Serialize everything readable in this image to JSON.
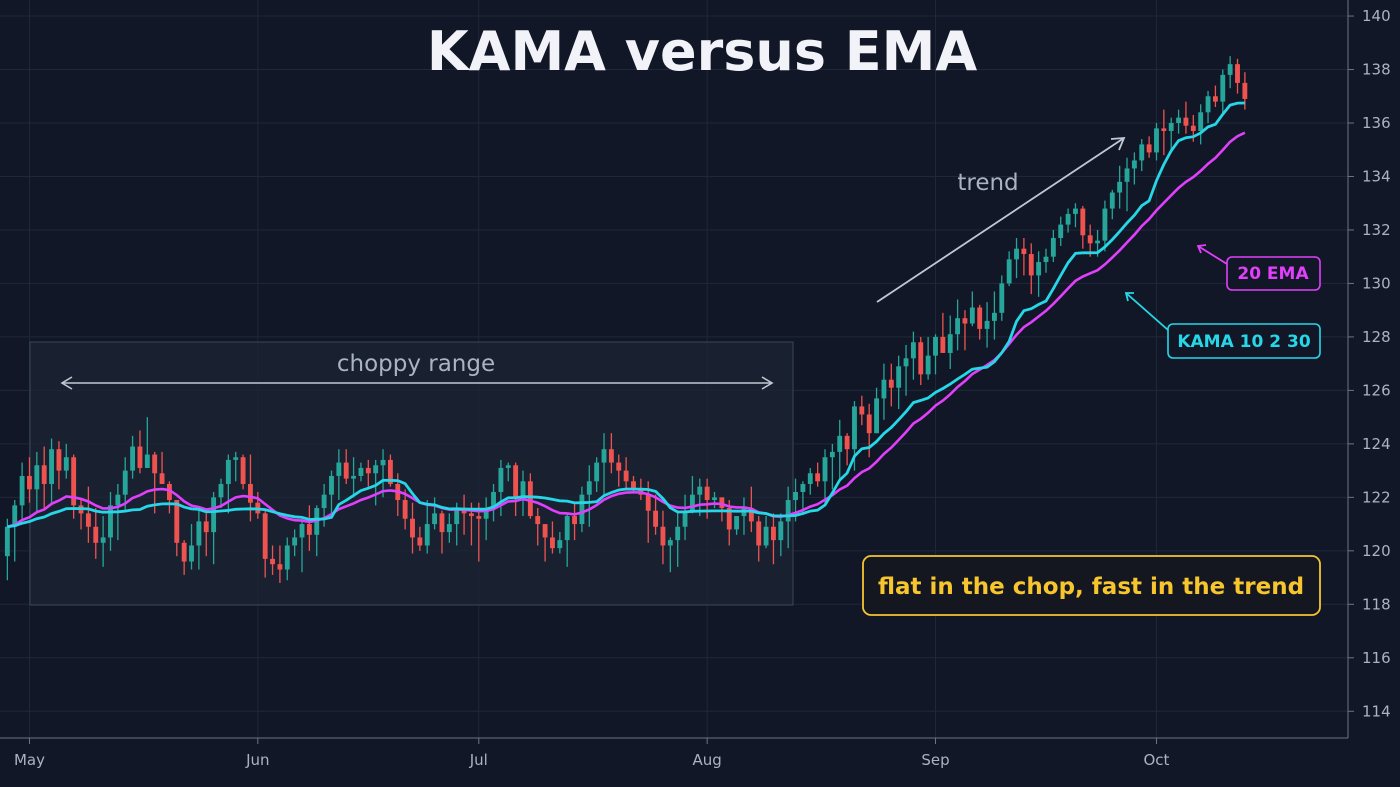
{
  "chart_data": {
    "type": "candlestick",
    "title": "KAMA versus EMA",
    "xlabel": "",
    "ylabel": "",
    "ylim": [
      113,
      140.6
    ],
    "y_ticks": [
      114,
      116,
      118,
      120,
      122,
      124,
      126,
      128,
      130,
      132,
      134,
      136,
      138,
      140
    ],
    "x_ticks": [
      {
        "label": "May",
        "day": 2
      },
      {
        "label": "Jun",
        "day": 33
      },
      {
        "label": "Jul",
        "day": 63
      },
      {
        "label": "Aug",
        "day": 94
      },
      {
        "label": "Sep",
        "day": 125
      },
      {
        "label": "Oct",
        "day": 155
      }
    ],
    "x_range_days": [
      -2,
      181
    ],
    "grid": true,
    "y_axis_side": "right",
    "colors": {
      "background": "#111726",
      "grid": "#1f2838",
      "up": "#26a69a",
      "down": "#ef5350",
      "ema": "#e040fb",
      "kama": "#26d7e8",
      "callout": "#f7c52e",
      "annotation": "#aab3c2"
    },
    "candles": [
      [
        -1,
        119.8,
        121.2,
        118.9,
        120.9
      ],
      [
        0,
        120.9,
        121.9,
        119.6,
        121.7
      ],
      [
        1,
        121.7,
        123.3,
        121.2,
        122.8
      ],
      [
        2,
        122.8,
        123.5,
        121.8,
        122.3
      ],
      [
        3,
        122.3,
        123.7,
        121.4,
        123.2
      ],
      [
        4,
        123.2,
        123.9,
        121.6,
        122.5
      ],
      [
        5,
        122.5,
        124.2,
        121.7,
        123.8
      ],
      [
        6,
        123.8,
        124.1,
        122.3,
        123.0
      ],
      [
        7,
        123.0,
        124.0,
        122.7,
        123.5
      ],
      [
        8,
        123.5,
        123.6,
        121.2,
        121.7
      ],
      [
        9,
        121.7,
        121.9,
        120.8,
        121.4
      ],
      [
        10,
        121.4,
        122.4,
        120.3,
        120.9
      ],
      [
        11,
        120.9,
        121.6,
        119.7,
        120.3
      ],
      [
        12,
        120.3,
        121.3,
        119.4,
        120.5
      ],
      [
        13,
        120.5,
        122.2,
        120.0,
        121.7
      ],
      [
        14,
        121.7,
        122.5,
        120.4,
        122.1
      ],
      [
        15,
        122.1,
        123.5,
        121.5,
        123.0
      ],
      [
        16,
        123.0,
        124.3,
        122.7,
        123.9
      ],
      [
        17,
        123.9,
        124.5,
        122.9,
        123.1
      ],
      [
        18,
        123.1,
        125.0,
        123.1,
        123.6
      ],
      [
        19,
        123.6,
        123.7,
        121.4,
        122.9
      ],
      [
        20,
        122.9,
        123.7,
        122.6,
        122.5
      ],
      [
        21,
        122.5,
        122.6,
        121.4,
        121.9
      ],
      [
        22,
        121.9,
        121.9,
        119.8,
        120.3
      ],
      [
        23,
        120.3,
        120.4,
        119.1,
        119.6
      ],
      [
        24,
        119.6,
        121.0,
        119.3,
        120.2
      ],
      [
        25,
        120.2,
        121.5,
        119.3,
        121.1
      ],
      [
        26,
        121.1,
        121.4,
        119.8,
        120.7
      ],
      [
        27,
        120.7,
        122.2,
        119.5,
        122.0
      ],
      [
        28,
        122.0,
        122.7,
        121.6,
        122.5
      ],
      [
        29,
        122.5,
        123.6,
        121.4,
        123.4
      ],
      [
        30,
        123.4,
        123.7,
        122.6,
        123.5
      ],
      [
        31,
        123.5,
        123.6,
        122.3,
        122.5
      ],
      [
        32,
        122.5,
        123.6,
        121.1,
        121.8
      ],
      [
        33,
        121.8,
        122.2,
        121.2,
        121.4
      ],
      [
        34,
        121.4,
        121.5,
        119.0,
        119.7
      ],
      [
        35,
        119.7,
        120.2,
        119.1,
        119.5
      ],
      [
        36,
        119.5,
        120.2,
        118.8,
        119.3
      ],
      [
        37,
        119.3,
        120.5,
        118.9,
        120.2
      ],
      [
        38,
        120.2,
        120.8,
        119.8,
        120.5
      ],
      [
        39,
        120.5,
        121.2,
        119.2,
        121.0
      ],
      [
        40,
        121.0,
        121.7,
        120.0,
        120.6
      ],
      [
        41,
        120.6,
        121.7,
        119.8,
        121.6
      ],
      [
        42,
        121.6,
        122.5,
        120.9,
        122.1
      ],
      [
        43,
        122.1,
        123.0,
        121.2,
        122.8
      ],
      [
        44,
        122.8,
        123.8,
        121.9,
        123.3
      ],
      [
        45,
        123.3,
        123.8,
        122.5,
        122.7
      ],
      [
        46,
        122.7,
        123.5,
        122.0,
        122.8
      ],
      [
        47,
        122.8,
        123.3,
        122.6,
        123.1
      ],
      [
        48,
        123.1,
        123.4,
        122.4,
        122.9
      ],
      [
        49,
        122.9,
        123.4,
        121.7,
        123.2
      ],
      [
        50,
        123.2,
        123.8,
        122.0,
        123.4
      ],
      [
        51,
        123.4,
        123.6,
        122.4,
        122.5
      ],
      [
        52,
        122.5,
        122.9,
        121.3,
        121.9
      ],
      [
        53,
        121.9,
        122.3,
        120.8,
        121.2
      ],
      [
        54,
        121.2,
        121.8,
        119.9,
        120.5
      ],
      [
        55,
        120.5,
        120.9,
        120.0,
        120.2
      ],
      [
        56,
        120.2,
        121.9,
        119.9,
        121.0
      ],
      [
        57,
        121.0,
        122.0,
        120.8,
        121.4
      ],
      [
        58,
        121.4,
        121.5,
        119.9,
        120.7
      ],
      [
        59,
        120.7,
        121.4,
        120.3,
        121.0
      ],
      [
        60,
        121.0,
        121.8,
        120.2,
        121.6
      ],
      [
        61,
        121.6,
        122.1,
        120.6,
        121.4
      ],
      [
        62,
        121.4,
        121.8,
        120.2,
        121.3
      ],
      [
        63,
        121.3,
        121.8,
        119.6,
        121.2
      ],
      [
        64,
        121.2,
        122.0,
        120.4,
        121.6
      ],
      [
        65,
        121.6,
        122.5,
        121.1,
        122.2
      ],
      [
        66,
        122.2,
        123.4,
        121.3,
        123.1
      ],
      [
        67,
        123.1,
        123.3,
        122.6,
        123.2
      ],
      [
        68,
        123.2,
        123.3,
        121.3,
        122.0
      ],
      [
        69,
        122.0,
        123.0,
        121.3,
        122.6
      ],
      [
        70,
        122.6,
        122.9,
        121.2,
        121.3
      ],
      [
        71,
        121.3,
        121.6,
        120.2,
        121.0
      ],
      [
        72,
        121.0,
        121.0,
        119.6,
        120.5
      ],
      [
        73,
        120.5,
        121.1,
        119.9,
        120.1
      ],
      [
        74,
        120.1,
        120.7,
        119.9,
        120.4
      ],
      [
        75,
        120.4,
        121.4,
        119.4,
        121.3
      ],
      [
        76,
        121.3,
        121.8,
        120.4,
        121.0
      ],
      [
        77,
        121.0,
        122.4,
        120.7,
        122.1
      ],
      [
        78,
        122.1,
        123.2,
        120.9,
        122.6
      ],
      [
        79,
        122.6,
        123.5,
        122.2,
        123.3
      ],
      [
        80,
        123.3,
        124.4,
        122.1,
        123.8
      ],
      [
        81,
        123.8,
        124.4,
        122.9,
        123.3
      ],
      [
        82,
        123.3,
        123.6,
        122.4,
        123.0
      ],
      [
        83,
        123.0,
        123.5,
        122.3,
        122.6
      ],
      [
        84,
        122.6,
        122.8,
        122.2,
        122.3
      ],
      [
        85,
        122.3,
        122.7,
        121.9,
        122.1
      ],
      [
        86,
        122.1,
        122.6,
        120.3,
        121.5
      ],
      [
        87,
        121.5,
        122.1,
        120.6,
        120.9
      ],
      [
        88,
        120.9,
        121.5,
        119.5,
        120.2
      ],
      [
        89,
        120.2,
        120.5,
        119.2,
        120.4
      ],
      [
        90,
        120.4,
        121.5,
        119.4,
        120.9
      ],
      [
        91,
        120.9,
        122.1,
        120.4,
        121.5
      ],
      [
        92,
        121.5,
        122.8,
        121.4,
        122.1
      ],
      [
        93,
        122.1,
        122.7,
        121.3,
        122.4
      ],
      [
        94,
        122.4,
        122.7,
        121.2,
        121.9
      ],
      [
        95,
        121.9,
        122.2,
        121.6,
        122.0
      ],
      [
        96,
        122.0,
        122.0,
        121.1,
        121.6
      ],
      [
        97,
        121.6,
        121.9,
        120.2,
        120.8
      ],
      [
        98,
        120.8,
        121.1,
        120.6,
        121.3
      ],
      [
        99,
        121.3,
        122.0,
        120.6,
        121.6
      ],
      [
        100,
        121.6,
        122.4,
        120.7,
        121.1
      ],
      [
        101,
        121.1,
        121.3,
        119.6,
        120.2
      ],
      [
        102,
        120.2,
        121.3,
        120.1,
        120.9
      ],
      [
        103,
        120.9,
        121.4,
        119.5,
        120.4
      ],
      [
        104,
        120.4,
        121.4,
        119.8,
        121.1
      ],
      [
        105,
        121.1,
        122.4,
        120.1,
        121.9
      ],
      [
        106,
        121.9,
        122.7,
        121.1,
        122.2
      ],
      [
        107,
        122.2,
        122.6,
        121.4,
        122.5
      ],
      [
        108,
        122.5,
        123.1,
        122.1,
        122.9
      ],
      [
        109,
        122.9,
        123.3,
        122.4,
        122.6
      ],
      [
        110,
        122.6,
        123.8,
        121.8,
        123.5
      ],
      [
        111,
        123.5,
        124.0,
        122.3,
        123.7
      ],
      [
        112,
        123.7,
        124.9,
        122.6,
        124.3
      ],
      [
        113,
        124.3,
        124.4,
        123.2,
        123.8
      ],
      [
        114,
        123.8,
        125.6,
        123.0,
        125.4
      ],
      [
        115,
        125.4,
        125.8,
        124.7,
        125.1
      ],
      [
        116,
        125.1,
        125.5,
        123.5,
        124.4
      ],
      [
        117,
        124.4,
        126.1,
        124.4,
        125.7
      ],
      [
        118,
        125.7,
        127.0,
        124.9,
        126.4
      ],
      [
        119,
        126.4,
        127.0,
        125.4,
        126.1
      ],
      [
        120,
        126.1,
        127.3,
        125.3,
        126.9
      ],
      [
        121,
        126.9,
        127.7,
        125.8,
        127.2
      ],
      [
        122,
        127.2,
        128.2,
        126.4,
        127.8
      ],
      [
        123,
        127.8,
        128.0,
        126.2,
        126.6
      ],
      [
        124,
        126.6,
        128.0,
        126.4,
        127.3
      ],
      [
        125,
        127.3,
        128.1,
        126.6,
        128.0
      ],
      [
        126,
        128.0,
        128.9,
        127.4,
        127.4
      ],
      [
        127,
        127.4,
        128.8,
        126.8,
        128.1
      ],
      [
        128,
        128.1,
        129.4,
        127.5,
        128.7
      ],
      [
        129,
        128.7,
        129.0,
        127.5,
        128.5
      ],
      [
        130,
        128.5,
        129.7,
        128.4,
        129.1
      ],
      [
        131,
        129.1,
        129.2,
        127.9,
        128.3
      ],
      [
        132,
        128.3,
        129.3,
        127.6,
        128.6
      ],
      [
        133,
        128.6,
        129.7,
        127.9,
        128.9
      ],
      [
        134,
        128.9,
        130.3,
        128.6,
        130.0
      ],
      [
        135,
        130.0,
        131.2,
        129.9,
        130.9
      ],
      [
        136,
        130.9,
        131.7,
        130.2,
        131.3
      ],
      [
        137,
        131.3,
        131.7,
        130.3,
        131.1
      ],
      [
        138,
        131.1,
        131.5,
        129.6,
        130.3
      ],
      [
        139,
        130.3,
        131.2,
        129.5,
        130.8
      ],
      [
        140,
        130.8,
        131.3,
        130.4,
        131.0
      ],
      [
        141,
        131.0,
        132.0,
        130.8,
        131.7
      ],
      [
        142,
        131.7,
        132.5,
        131.4,
        132.2
      ],
      [
        143,
        132.2,
        132.8,
        131.9,
        132.6
      ],
      [
        144,
        132.6,
        133.0,
        132.1,
        132.8
      ],
      [
        145,
        132.8,
        132.9,
        131.3,
        131.8
      ],
      [
        146,
        131.8,
        132.2,
        131.0,
        131.5
      ],
      [
        147,
        131.5,
        132.0,
        131.0,
        131.6
      ],
      [
        148,
        131.6,
        133.1,
        131.2,
        132.8
      ],
      [
        149,
        132.8,
        133.5,
        132.4,
        133.4
      ],
      [
        150,
        133.4,
        134.4,
        132.8,
        133.8
      ],
      [
        151,
        133.8,
        134.7,
        132.7,
        134.3
      ],
      [
        152,
        134.3,
        134.9,
        133.7,
        134.6
      ],
      [
        153,
        134.6,
        135.4,
        134.2,
        135.2
      ],
      [
        154,
        135.2,
        135.5,
        134.7,
        134.9
      ],
      [
        155,
        134.9,
        136.0,
        134.6,
        135.8
      ],
      [
        156,
        135.8,
        136.5,
        134.8,
        135.7
      ],
      [
        157,
        135.7,
        136.2,
        135.0,
        136.0
      ],
      [
        158,
        136.0,
        136.5,
        135.6,
        136.2
      ],
      [
        159,
        136.2,
        136.8,
        135.6,
        135.9
      ],
      [
        160,
        135.9,
        136.3,
        135.3,
        135.7
      ],
      [
        161,
        135.7,
        136.7,
        135.2,
        136.4
      ],
      [
        162,
        136.4,
        137.2,
        136.0,
        137.0
      ],
      [
        163,
        137.0,
        137.4,
        136.6,
        136.8
      ],
      [
        164,
        136.8,
        138.0,
        136.3,
        137.8
      ],
      [
        165,
        137.8,
        138.5,
        137.3,
        138.2
      ],
      [
        166,
        138.2,
        138.4,
        137.1,
        137.5
      ],
      [
        167,
        137.5,
        137.9,
        136.5,
        136.9
      ]
    ],
    "series": [
      {
        "name": "20 EMA",
        "color": "#e040fb"
      },
      {
        "name": "KAMA 10 2 30",
        "color": "#26d7e8"
      }
    ],
    "annotations": {
      "range_label": "choppy range",
      "trend_label": "trend",
      "ema_label": "20 EMA",
      "kama_label": "KAMA 10 2 30",
      "callout": "flat in the chop, fast in the trend"
    }
  }
}
